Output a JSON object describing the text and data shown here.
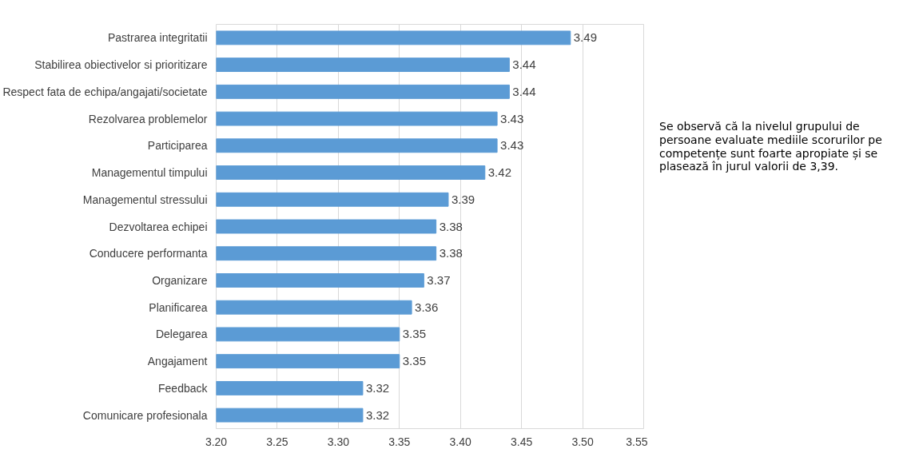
{
  "chart_data": {
    "type": "bar",
    "orientation": "horizontal",
    "categories": [
      "Pastrarea integritatii",
      "Stabilirea obiectivelor si prioritizare",
      "Respect fata de echipa/angajati/societate",
      "Rezolvarea problemelor",
      "Participarea",
      "Managementul timpului",
      "Managementul stressului",
      "Dezvoltarea echipei",
      "Conducere performanta",
      "Organizare",
      "Planificarea",
      "Delegarea",
      "Angajament",
      "Feedback",
      "Comunicare profesionala"
    ],
    "values": [
      3.49,
      3.44,
      3.44,
      3.43,
      3.43,
      3.42,
      3.39,
      3.38,
      3.38,
      3.37,
      3.36,
      3.35,
      3.35,
      3.32,
      3.32
    ],
    "color": "#5b9bd5",
    "xlim": [
      3.2,
      3.55
    ],
    "xticks": [
      {
        "value": 3.2,
        "label": "3.20"
      },
      {
        "value": 3.25,
        "label": "3.25"
      },
      {
        "value": 3.3,
        "label": "3.30"
      },
      {
        "value": 3.35,
        "label": "3.35"
      },
      {
        "value": 3.4,
        "label": "3.40"
      },
      {
        "value": 3.45,
        "label": "3.45"
      },
      {
        "value": 3.5,
        "label": "3.50"
      },
      {
        "value": 3.55,
        "label": "3.55"
      }
    ],
    "grid": "x",
    "data_labels": true,
    "annotations": [
      "Se observă că la nivelul grupului de persoane evaluate mediile scorurilor pe competențe sunt foarte apropiate și se plasează în jurul valorii de 3,39."
    ]
  }
}
